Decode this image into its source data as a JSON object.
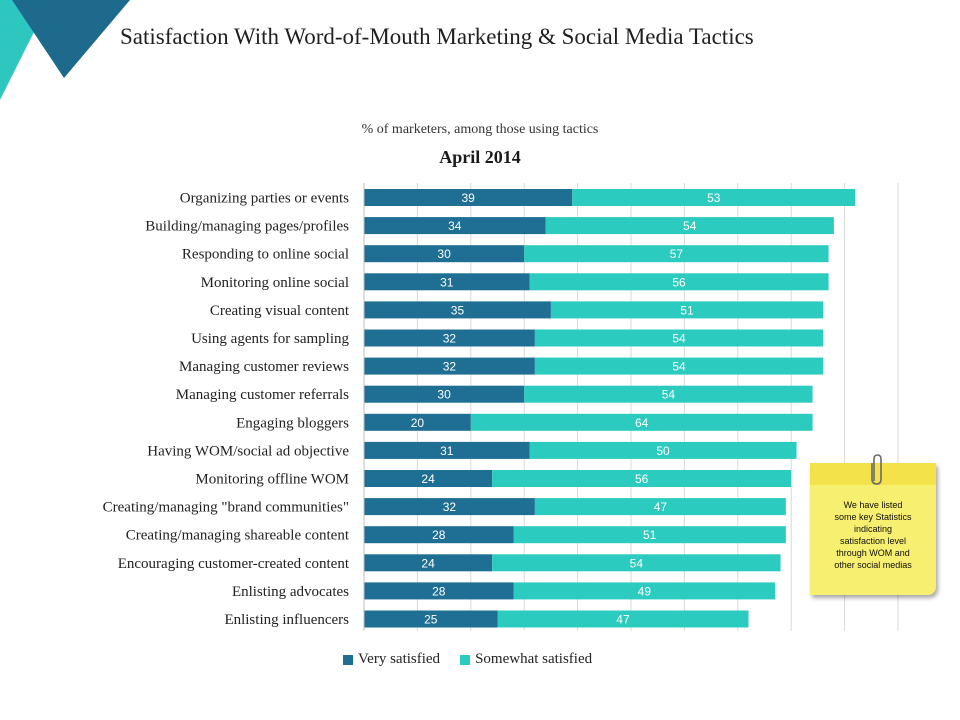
{
  "title": "Satisfaction With Word-of-Mouth Marketing & Social Media Tactics",
  "subtitle": "% of marketers, among those using tactics",
  "period": "April 2014",
  "note": {
    "lines": [
      "We have listed",
      "some key Statistics",
      "indicating",
      "satisfaction level",
      "through WOM and",
      "other social medias"
    ]
  },
  "colors": {
    "very": "#1f6e93",
    "somewhat": "#2ccbc0",
    "corner_dark": "#1e6a8d",
    "corner_light": "#2ec7bf"
  },
  "chart_data": {
    "type": "bar",
    "orientation": "horizontal",
    "stacked": true,
    "categories": [
      "Organizing parties or events",
      "Building/managing pages/profiles",
      "Responding to online social",
      "Monitoring online social",
      "Creating visual content",
      "Using agents for sampling",
      "Managing customer reviews",
      "Managing customer referrals",
      "Engaging bloggers",
      "Having WOM/social ad objective",
      "Monitoring offline WOM",
      "Creating/managing \"brand communities\"",
      "Creating/managing shareable content",
      "Encouraging customer-created content",
      "Enlisting advocates",
      "Enlisting influencers"
    ],
    "series": [
      {
        "name": "Very satisfied",
        "values": [
          39,
          34,
          30,
          31,
          35,
          32,
          32,
          30,
          20,
          31,
          24,
          32,
          28,
          24,
          28,
          25
        ]
      },
      {
        "name": "Somewhat satisfied",
        "values": [
          53,
          54,
          57,
          56,
          51,
          54,
          54,
          54,
          64,
          50,
          56,
          47,
          51,
          54,
          49,
          47
        ]
      }
    ],
    "xlim": [
      0,
      100
    ],
    "grid": true,
    "legend_position": "bottom"
  }
}
